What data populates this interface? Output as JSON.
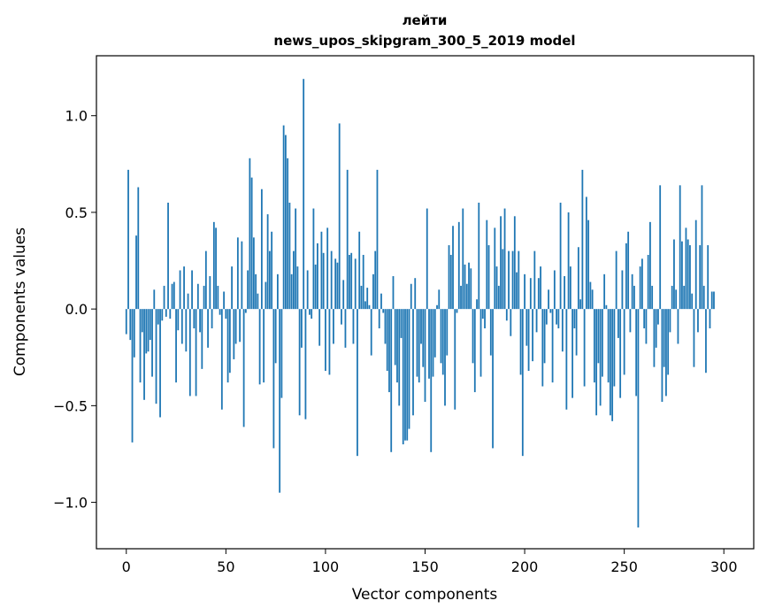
{
  "chart_data": {
    "type": "bar",
    "title": "лейти",
    "subtitle": "news_upos_skipgram_300_5_2019 model",
    "xlabel": "Vector components",
    "ylabel": "Components values",
    "xlim": [
      -15,
      315
    ],
    "ylim": [
      -1.24,
      1.31
    ],
    "x_ticks": [
      0,
      50,
      100,
      150,
      200,
      250,
      300
    ],
    "x_tick_labels": [
      "0",
      "50",
      "100",
      "150",
      "200",
      "250",
      "300"
    ],
    "y_ticks": [
      -1.0,
      -0.5,
      0.0,
      0.5,
      1.0
    ],
    "y_tick_labels": [
      "−1.0",
      "−0.5",
      "0.0",
      "0.5",
      "1.0"
    ],
    "bar_color": "#1f77b4",
    "values": [
      -0.13,
      0.72,
      -0.16,
      -0.69,
      -0.25,
      0.38,
      0.63,
      -0.38,
      -0.12,
      -0.47,
      -0.23,
      -0.22,
      -0.16,
      -0.35,
      0.1,
      -0.49,
      -0.08,
      -0.56,
      -0.06,
      0.12,
      -0.04,
      0.55,
      -0.05,
      0.13,
      0.14,
      -0.38,
      -0.11,
      0.2,
      -0.18,
      0.22,
      -0.22,
      0.08,
      -0.45,
      0.2,
      -0.1,
      -0.45,
      0.13,
      -0.12,
      -0.31,
      0.12,
      0.3,
      -0.2,
      0.17,
      -0.1,
      0.45,
      0.42,
      0.12,
      -0.03,
      -0.52,
      0.09,
      -0.05,
      -0.38,
      -0.33,
      0.22,
      -0.26,
      -0.18,
      0.37,
      -0.17,
      0.35,
      -0.61,
      -0.02,
      0.2,
      0.78,
      0.68,
      0.37,
      0.18,
      0.08,
      -0.39,
      0.62,
      -0.38,
      0.14,
      0.49,
      0.3,
      0.4,
      -0.72,
      -0.28,
      0.18,
      -0.95,
      -0.46,
      0.95,
      0.9,
      0.78,
      0.55,
      0.18,
      0.3,
      0.52,
      0.22,
      -0.55,
      -0.2,
      1.19,
      -0.57,
      0.2,
      -0.03,
      -0.05,
      0.52,
      0.23,
      0.34,
      -0.19,
      0.4,
      0.29,
      -0.32,
      0.42,
      -0.34,
      0.3,
      -0.18,
      0.26,
      0.24,
      0.96,
      -0.08,
      0.15,
      -0.2,
      0.72,
      0.28,
      0.29,
      -0.18,
      0.26,
      -0.76,
      0.4,
      0.12,
      0.28,
      0.04,
      0.11,
      0.02,
      -0.24,
      0.18,
      0.3,
      0.72,
      -0.1,
      0.08,
      -0.02,
      -0.18,
      -0.32,
      -0.43,
      -0.74,
      0.17,
      -0.29,
      -0.38,
      -0.5,
      -0.15,
      -0.7,
      -0.68,
      -0.68,
      -0.62,
      0.13,
      -0.55,
      0.16,
      -0.35,
      -0.38,
      -0.18,
      -0.3,
      -0.48,
      0.52,
      -0.36,
      -0.74,
      -0.35,
      -0.25,
      0.02,
      0.1,
      -0.28,
      -0.34,
      -0.5,
      -0.24,
      0.33,
      0.28,
      0.43,
      -0.52,
      -0.02,
      0.45,
      0.12,
      0.52,
      0.23,
      0.13,
      0.24,
      0.21,
      -0.28,
      -0.43,
      0.05,
      0.55,
      -0.35,
      -0.05,
      -0.1,
      0.46,
      0.33,
      -0.24,
      -0.72,
      0.42,
      0.22,
      0.12,
      0.48,
      0.31,
      0.52,
      -0.06,
      0.3,
      -0.14,
      0.3,
      0.48,
      0.19,
      0.3,
      -0.34,
      -0.76,
      0.18,
      -0.19,
      -0.32,
      0.16,
      -0.27,
      0.3,
      -0.12,
      0.16,
      0.22,
      -0.4,
      -0.28,
      -0.08,
      0.1,
      -0.02,
      -0.38,
      0.2,
      -0.08,
      -0.1,
      0.55,
      -0.22,
      0.17,
      -0.52,
      0.5,
      0.22,
      -0.46,
      -0.1,
      -0.24,
      0.32,
      0.05,
      0.72,
      -0.4,
      0.58,
      0.46,
      0.14,
      0.1,
      -0.38,
      -0.55,
      -0.28,
      -0.5,
      -0.35,
      0.18,
      0.02,
      -0.38,
      -0.55,
      -0.58,
      -0.4,
      0.3,
      -0.15,
      -0.46,
      0.2,
      -0.34,
      0.34,
      0.4,
      -0.12,
      0.18,
      0.12,
      -0.45,
      -1.13,
      0.22,
      0.26,
      -0.1,
      -0.18,
      0.28,
      0.45,
      0.12,
      -0.3,
      -0.2,
      -0.08,
      0.64,
      -0.48,
      -0.3,
      -0.45,
      -0.34,
      -0.12,
      0.12,
      0.36,
      0.1,
      -0.18,
      0.64,
      0.35,
      0.12,
      0.42,
      0.36,
      0.33,
      0.08,
      -0.3,
      0.46,
      -0.12,
      0.33,
      0.64,
      0.12,
      -0.33,
      0.33,
      -0.1,
      0.09,
      0.09
    ]
  }
}
